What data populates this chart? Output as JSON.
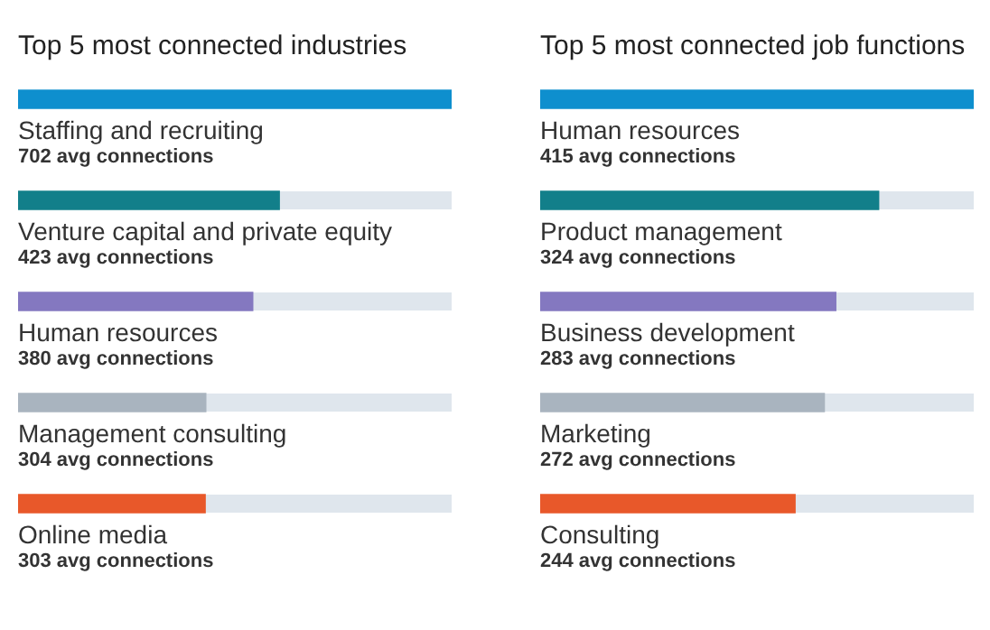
{
  "chart_data": [
    {
      "type": "bar",
      "orientation": "horizontal",
      "title": "Top 5 most connected industries",
      "categories": [
        "Staffing and recruiting",
        "Venture capital and private equity",
        "Human resources",
        "Management consulting",
        "Online media"
      ],
      "values": [
        702,
        423,
        380,
        304,
        303
      ],
      "colors": [
        "#0e8fce",
        "#127f8a",
        "#8478c0",
        "#a9b4bf",
        "#e8582a"
      ],
      "value_labels": [
        "702 avg connections",
        "423 avg connections",
        "380 avg connections",
        "304 avg connections",
        "303 avg connections"
      ],
      "tick_labels": false,
      "legend": false
    },
    {
      "type": "bar",
      "orientation": "horizontal",
      "title": "Top 5 most connected job functions",
      "categories": [
        "Human resources",
        "Product management",
        "Business development",
        "Marketing",
        "Consulting"
      ],
      "values": [
        415,
        324,
        283,
        272,
        244
      ],
      "colors": [
        "#0e8fce",
        "#127f8a",
        "#8478c0",
        "#a9b4bf",
        "#e8582a"
      ],
      "value_labels": [
        "415 avg connections",
        "324 avg connections",
        "283 avg connections",
        "272 avg connections",
        "244 avg connections"
      ],
      "tick_labels": false,
      "legend": false
    }
  ]
}
